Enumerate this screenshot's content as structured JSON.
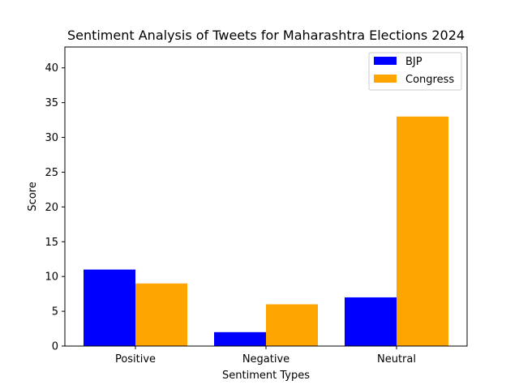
{
  "chart_data": {
    "type": "bar",
    "title": "Sentiment Analysis of Tweets for Maharashtra Elections 2024",
    "xlabel": "Sentiment Types",
    "ylabel": "Score",
    "categories": [
      "Positive",
      "Negative",
      "Neutral"
    ],
    "series": [
      {
        "name": "BJP",
        "values": [
          11,
          2,
          7
        ],
        "color": "#0000ff"
      },
      {
        "name": "Congress",
        "values": [
          9,
          6,
          33
        ],
        "color": "#ffa500"
      }
    ],
    "ylim": [
      0,
      43
    ],
    "yticks": [
      0,
      5,
      10,
      15,
      20,
      25,
      30,
      35,
      40
    ],
    "grid": false,
    "legend_position": "top-right"
  }
}
